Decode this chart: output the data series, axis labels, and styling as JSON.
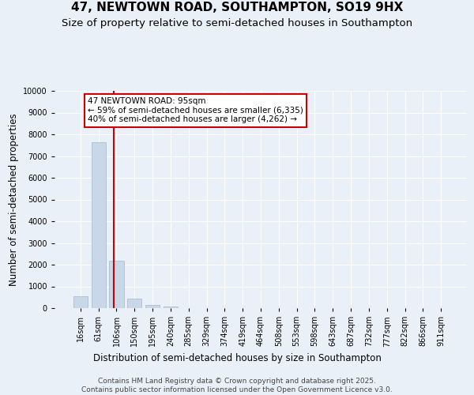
{
  "title_line1": "47, NEWTOWN ROAD, SOUTHAMPTON, SO19 9HX",
  "title_line2": "Size of property relative to semi-detached houses in Southampton",
  "xlabel": "Distribution of semi-detached houses by size in Southampton",
  "ylabel": "Number of semi-detached properties",
  "categories": [
    "16sqm",
    "61sqm",
    "106sqm",
    "150sqm",
    "195sqm",
    "240sqm",
    "285sqm",
    "329sqm",
    "374sqm",
    "419sqm",
    "464sqm",
    "508sqm",
    "553sqm",
    "598sqm",
    "643sqm",
    "687sqm",
    "732sqm",
    "777sqm",
    "822sqm",
    "866sqm",
    "911sqm"
  ],
  "values": [
    530,
    7650,
    2200,
    420,
    130,
    80,
    0,
    0,
    0,
    0,
    0,
    0,
    0,
    0,
    0,
    0,
    0,
    0,
    0,
    0,
    0
  ],
  "bar_color": "#c8d8e8",
  "bar_edge_color": "#a0b8cc",
  "red_line_index": 1.85,
  "annotation_text": "47 NEWTOWN ROAD: 95sqm\n← 59% of semi-detached houses are smaller (6,335)\n40% of semi-detached houses are larger (4,262) →",
  "annotation_box_color": "#ffffff",
  "annotation_box_edge": "#cc0000",
  "red_line_color": "#cc0000",
  "ylim": [
    0,
    10000
  ],
  "yticks": [
    0,
    1000,
    2000,
    3000,
    4000,
    5000,
    6000,
    7000,
    8000,
    9000,
    10000
  ],
  "footer": "Contains HM Land Registry data © Crown copyright and database right 2025.\nContains public sector information licensed under the Open Government Licence v3.0.",
  "bg_color": "#eaf0f8",
  "plot_bg_color": "#eaf0f8",
  "grid_color": "#ffffff",
  "title_fontsize": 11,
  "subtitle_fontsize": 9.5,
  "axis_label_fontsize": 8.5,
  "tick_fontsize": 7,
  "footer_fontsize": 6.5,
  "annotation_fontsize": 7.5
}
